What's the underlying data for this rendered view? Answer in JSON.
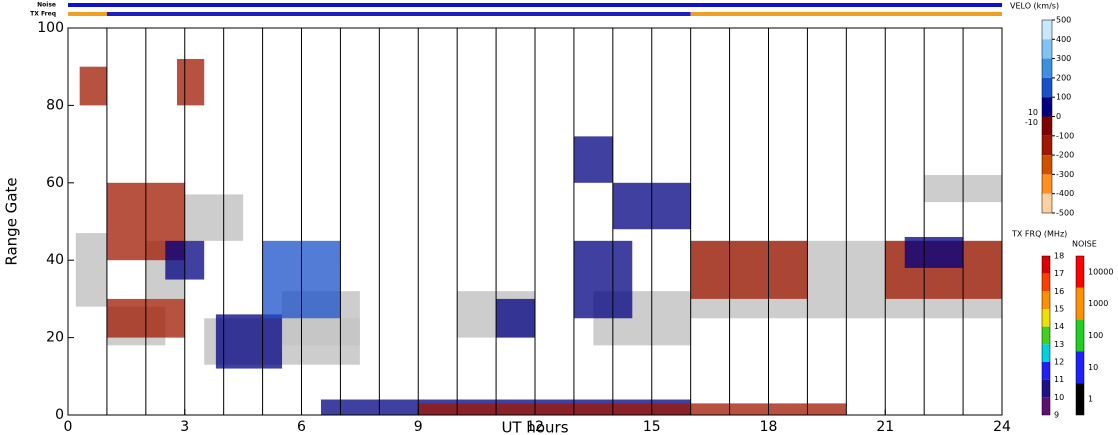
{
  "chart_data": {
    "type": "range-time",
    "x_label": "UT hours",
    "y_label": "Range Gate",
    "xlim": [
      0,
      24
    ],
    "ylim": [
      0,
      100
    ],
    "xticks": [
      0,
      3,
      6,
      9,
      12,
      15,
      18,
      21,
      24
    ],
    "yticks": [
      0,
      20,
      40,
      60,
      80,
      100
    ],
    "hour_lines": [
      1,
      2,
      3,
      4,
      5,
      6,
      7,
      8,
      9,
      10,
      11,
      12,
      13,
      14,
      15,
      16,
      17,
      18,
      19,
      20,
      21,
      22,
      23
    ],
    "noise_bar": {
      "label": "Noise",
      "segments": [
        {
          "start": 0,
          "end": 24,
          "color": "#1010d0"
        }
      ]
    },
    "tx_bar": {
      "label": "TX Freq",
      "segments": [
        {
          "start": 0,
          "end": 1,
          "color": "#f0a020"
        },
        {
          "start": 1,
          "end": 16,
          "color": "#2020c0"
        },
        {
          "start": 16,
          "end": 24,
          "color": "#f0a020"
        }
      ]
    },
    "ground_color": "#c4c4c4",
    "velocity_scale": {
      "title": "VELO (km/s)",
      "ticks": [
        500,
        400,
        300,
        200,
        100,
        0,
        -100,
        -200,
        -300,
        -400,
        -500
      ],
      "small_ticks": [
        10,
        -10
      ],
      "colors": [
        "#c8e8ff",
        "#80c4f4",
        "#3c90e0",
        "#1850c8",
        "#000080",
        "#800000",
        "#a01800",
        "#d05000",
        "#ff9020",
        "#ffd0a0"
      ]
    },
    "tx_scale": {
      "title": "TX FRQ (MHz)",
      "ticks": [
        18,
        17,
        16,
        15,
        14,
        13,
        12,
        11,
        10,
        9
      ],
      "colors": [
        "#e00000",
        "#ff4000",
        "#ff9000",
        "#f0e000",
        "#40d020",
        "#00d0e0",
        "#2020ff",
        "#20108c",
        "#601070"
      ]
    },
    "noise_scale": {
      "title": "NOISE",
      "ticks": [
        10000,
        1000,
        100,
        10,
        1
      ],
      "colors": [
        "#ff0000",
        "#ff9000",
        "#20d020",
        "#2020ff",
        "#000000"
      ]
    },
    "ground_patches": [
      [
        0.2,
        1.0,
        28,
        47
      ],
      [
        1.0,
        2.5,
        18,
        28
      ],
      [
        3.0,
        4.5,
        45,
        57
      ],
      [
        2.0,
        3.0,
        30,
        45
      ],
      [
        3.5,
        7.5,
        13,
        25
      ],
      [
        5.5,
        7.5,
        18,
        32
      ],
      [
        10.0,
        12.0,
        20,
        32
      ],
      [
        13.5,
        16.0,
        18,
        32
      ],
      [
        16.0,
        24.0,
        25,
        45
      ],
      [
        22.0,
        24.0,
        55,
        62
      ]
    ],
    "velocity_patches": [
      [
        1.0,
        3.0,
        20,
        30,
        -100
      ],
      [
        1.0,
        3.0,
        40,
        60,
        -100
      ],
      [
        0.3,
        1.0,
        80,
        90,
        -100
      ],
      [
        2.8,
        3.5,
        80,
        92,
        -100
      ],
      [
        2.5,
        3.5,
        35,
        45,
        100
      ],
      [
        3.8,
        5.5,
        12,
        26,
        100
      ],
      [
        5.0,
        7.0,
        25,
        45,
        150
      ],
      [
        6.5,
        16.0,
        0,
        4,
        100
      ],
      [
        9.0,
        16.0,
        0,
        3,
        -100
      ],
      [
        11.0,
        12.0,
        20,
        30,
        100
      ],
      [
        13.0,
        14.5,
        25,
        45,
        100
      ],
      [
        14.0,
        16.0,
        48,
        60,
        100
      ],
      [
        13.0,
        14.0,
        60,
        72,
        100
      ],
      [
        16.0,
        19.0,
        30,
        45,
        -100
      ],
      [
        21.0,
        24.0,
        30,
        45,
        -100
      ],
      [
        21.5,
        23.0,
        38,
        46,
        100
      ],
      [
        16.0,
        20.0,
        0,
        3,
        -100
      ]
    ]
  }
}
